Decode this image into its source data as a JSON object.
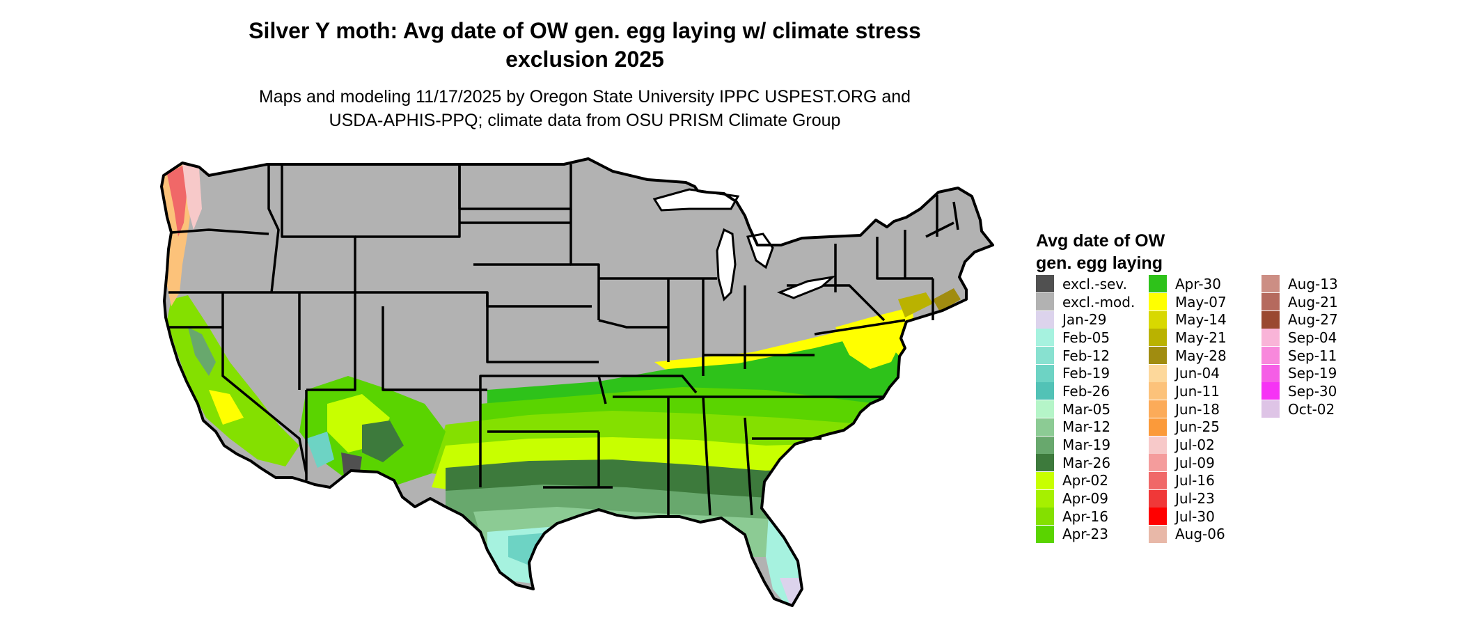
{
  "title": {
    "line1": "Silver Y moth: Avg date of OW gen. egg laying w/ climate stress",
    "line2": "exclusion 2025"
  },
  "subtitle": {
    "line1": "Maps and modeling 11/17/2025 by Oregon State University IPPC USPEST.ORG and",
    "line2": "USDA-APHIS-PPQ; climate data from OSU PRISM Climate Group"
  },
  "legend": {
    "title_line1": "Avg date of OW",
    "title_line2": "gen. egg laying",
    "items": [
      {
        "label": "excl.-sev.",
        "color": "#505050"
      },
      {
        "label": "excl.-mod.",
        "color": "#B2B2B2"
      },
      {
        "label": "Jan-29",
        "color": "#DCD3EC"
      },
      {
        "label": "Feb-05",
        "color": "#A6F2DF"
      },
      {
        "label": "Feb-12",
        "color": "#88E1D0"
      },
      {
        "label": "Feb-19",
        "color": "#6DD3C4"
      },
      {
        "label": "Feb-26",
        "color": "#52C2B6"
      },
      {
        "label": "Mar-05",
        "color": "#B5F5C8"
      },
      {
        "label": "Mar-12",
        "color": "#8CCB94"
      },
      {
        "label": "Mar-19",
        "color": "#68A86D"
      },
      {
        "label": "Mar-26",
        "color": "#3D7A3C"
      },
      {
        "label": "Apr-02",
        "color": "#C8FF00"
      },
      {
        "label": "Apr-09",
        "color": "#A6F000"
      },
      {
        "label": "Apr-16",
        "color": "#84E000"
      },
      {
        "label": "Apr-23",
        "color": "#5AD400"
      },
      {
        "label": "Apr-30",
        "color": "#2EC21A"
      },
      {
        "label": "May-07",
        "color": "#FFFF00"
      },
      {
        "label": "May-14",
        "color": "#D8D800"
      },
      {
        "label": "May-21",
        "color": "#BAB200"
      },
      {
        "label": "May-28",
        "color": "#A08C10"
      },
      {
        "label": "Jun-04",
        "color": "#FDD89B"
      },
      {
        "label": "Jun-11",
        "color": "#FCC27A"
      },
      {
        "label": "Jun-18",
        "color": "#FCAB59"
      },
      {
        "label": "Jun-25",
        "color": "#FB9A3A"
      },
      {
        "label": "Jul-02",
        "color": "#F7C9C9"
      },
      {
        "label": "Jul-09",
        "color": "#F49C9C"
      },
      {
        "label": "Jul-16",
        "color": "#F06868"
      },
      {
        "label": "Jul-23",
        "color": "#F03838"
      },
      {
        "label": "Jul-30",
        "color": "#FF0000"
      },
      {
        "label": "Aug-06",
        "color": "#E8B8A8"
      },
      {
        "label": "Aug-13",
        "color": "#CC8E84"
      },
      {
        "label": "Aug-21",
        "color": "#B56A5E"
      },
      {
        "label": "Aug-27",
        "color": "#9A4830"
      },
      {
        "label": "Sep-04",
        "color": "#F9B4D8"
      },
      {
        "label": "Sep-11",
        "color": "#F888DC"
      },
      {
        "label": "Sep-19",
        "color": "#F55EE6"
      },
      {
        "label": "Sep-30",
        "color": "#F633F5"
      },
      {
        "label": "Oct-02",
        "color": "#DEC4E6"
      }
    ]
  },
  "map": {
    "excluded_color": "#B2B2B2",
    "border_color": "#000000"
  }
}
